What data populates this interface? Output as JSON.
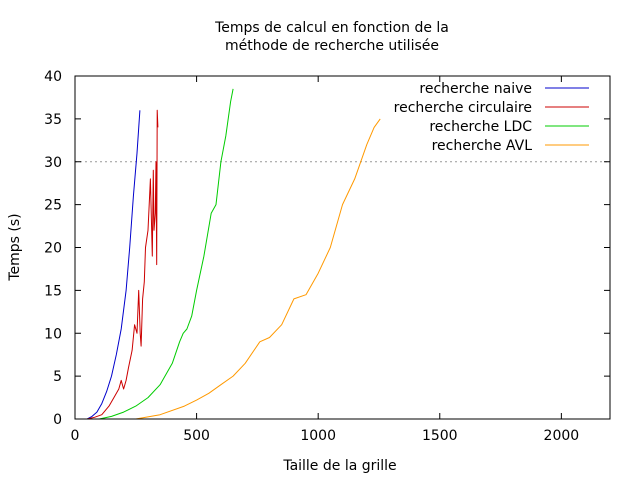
{
  "chart_data": {
    "type": "line",
    "title": [
      "Temps de calcul en fonction de la",
      "méthode de recherche utilisée"
    ],
    "xlabel": "Taille de la grille",
    "ylabel": "Temps (s)",
    "xlim": [
      0,
      2200
    ],
    "ylim": [
      0,
      40
    ],
    "xticks": [
      0,
      500,
      1000,
      1500,
      2000
    ],
    "yticks": [
      0,
      5,
      10,
      15,
      20,
      25,
      30,
      35,
      40
    ],
    "grid": false,
    "legend_position": "top-right",
    "reference_line": {
      "y": 30,
      "style": "dotted",
      "color": "#999999"
    },
    "series": [
      {
        "name": "recherche naive",
        "color": "#0000cc",
        "x": [
          50,
          70,
          90,
          110,
          130,
          150,
          170,
          190,
          210,
          225,
          240,
          255,
          267
        ],
        "y": [
          0,
          0.3,
          0.8,
          1.8,
          3.2,
          5,
          7.5,
          10.5,
          15,
          20,
          26,
          31,
          36
        ]
      },
      {
        "name": "recherche circulaire",
        "color": "#cc0000",
        "x": [
          50,
          80,
          110,
          140,
          160,
          180,
          190,
          200,
          210,
          220,
          235,
          245,
          255,
          262,
          268,
          272,
          278,
          285,
          290,
          300,
          310,
          318,
          322,
          325,
          330,
          333,
          336,
          338,
          341
        ],
        "y": [
          0,
          0.2,
          0.5,
          1.5,
          2.5,
          3.5,
          4.5,
          3.5,
          4.5,
          6,
          8,
          11,
          10,
          15,
          10,
          8.5,
          14,
          16,
          20,
          22,
          28,
          19,
          29,
          22,
          24,
          30,
          18,
          36,
          34
        ]
      },
      {
        "name": "recherche LDC",
        "color": "#00cc00",
        "x": [
          100,
          150,
          200,
          250,
          300,
          350,
          400,
          430,
          445,
          460,
          480,
          500,
          530,
          560,
          580,
          600,
          620,
          640,
          650
        ],
        "y": [
          0,
          0.3,
          0.8,
          1.5,
          2.5,
          4,
          6.5,
          9,
          10,
          10.5,
          12,
          15,
          19,
          24,
          25,
          30,
          33,
          37,
          38.5
        ]
      },
      {
        "name": "recherche AVL",
        "color": "#ff9900",
        "x": [
          250,
          350,
          450,
          500,
          550,
          600,
          650,
          700,
          760,
          800,
          850,
          900,
          950,
          1000,
          1050,
          1100,
          1150,
          1200,
          1230,
          1255
        ],
        "y": [
          0,
          0.5,
          1.5,
          2.2,
          3,
          4,
          5,
          6.5,
          9,
          9.5,
          11,
          14,
          14.5,
          17,
          20,
          25,
          28,
          32,
          34,
          35
        ]
      }
    ]
  }
}
